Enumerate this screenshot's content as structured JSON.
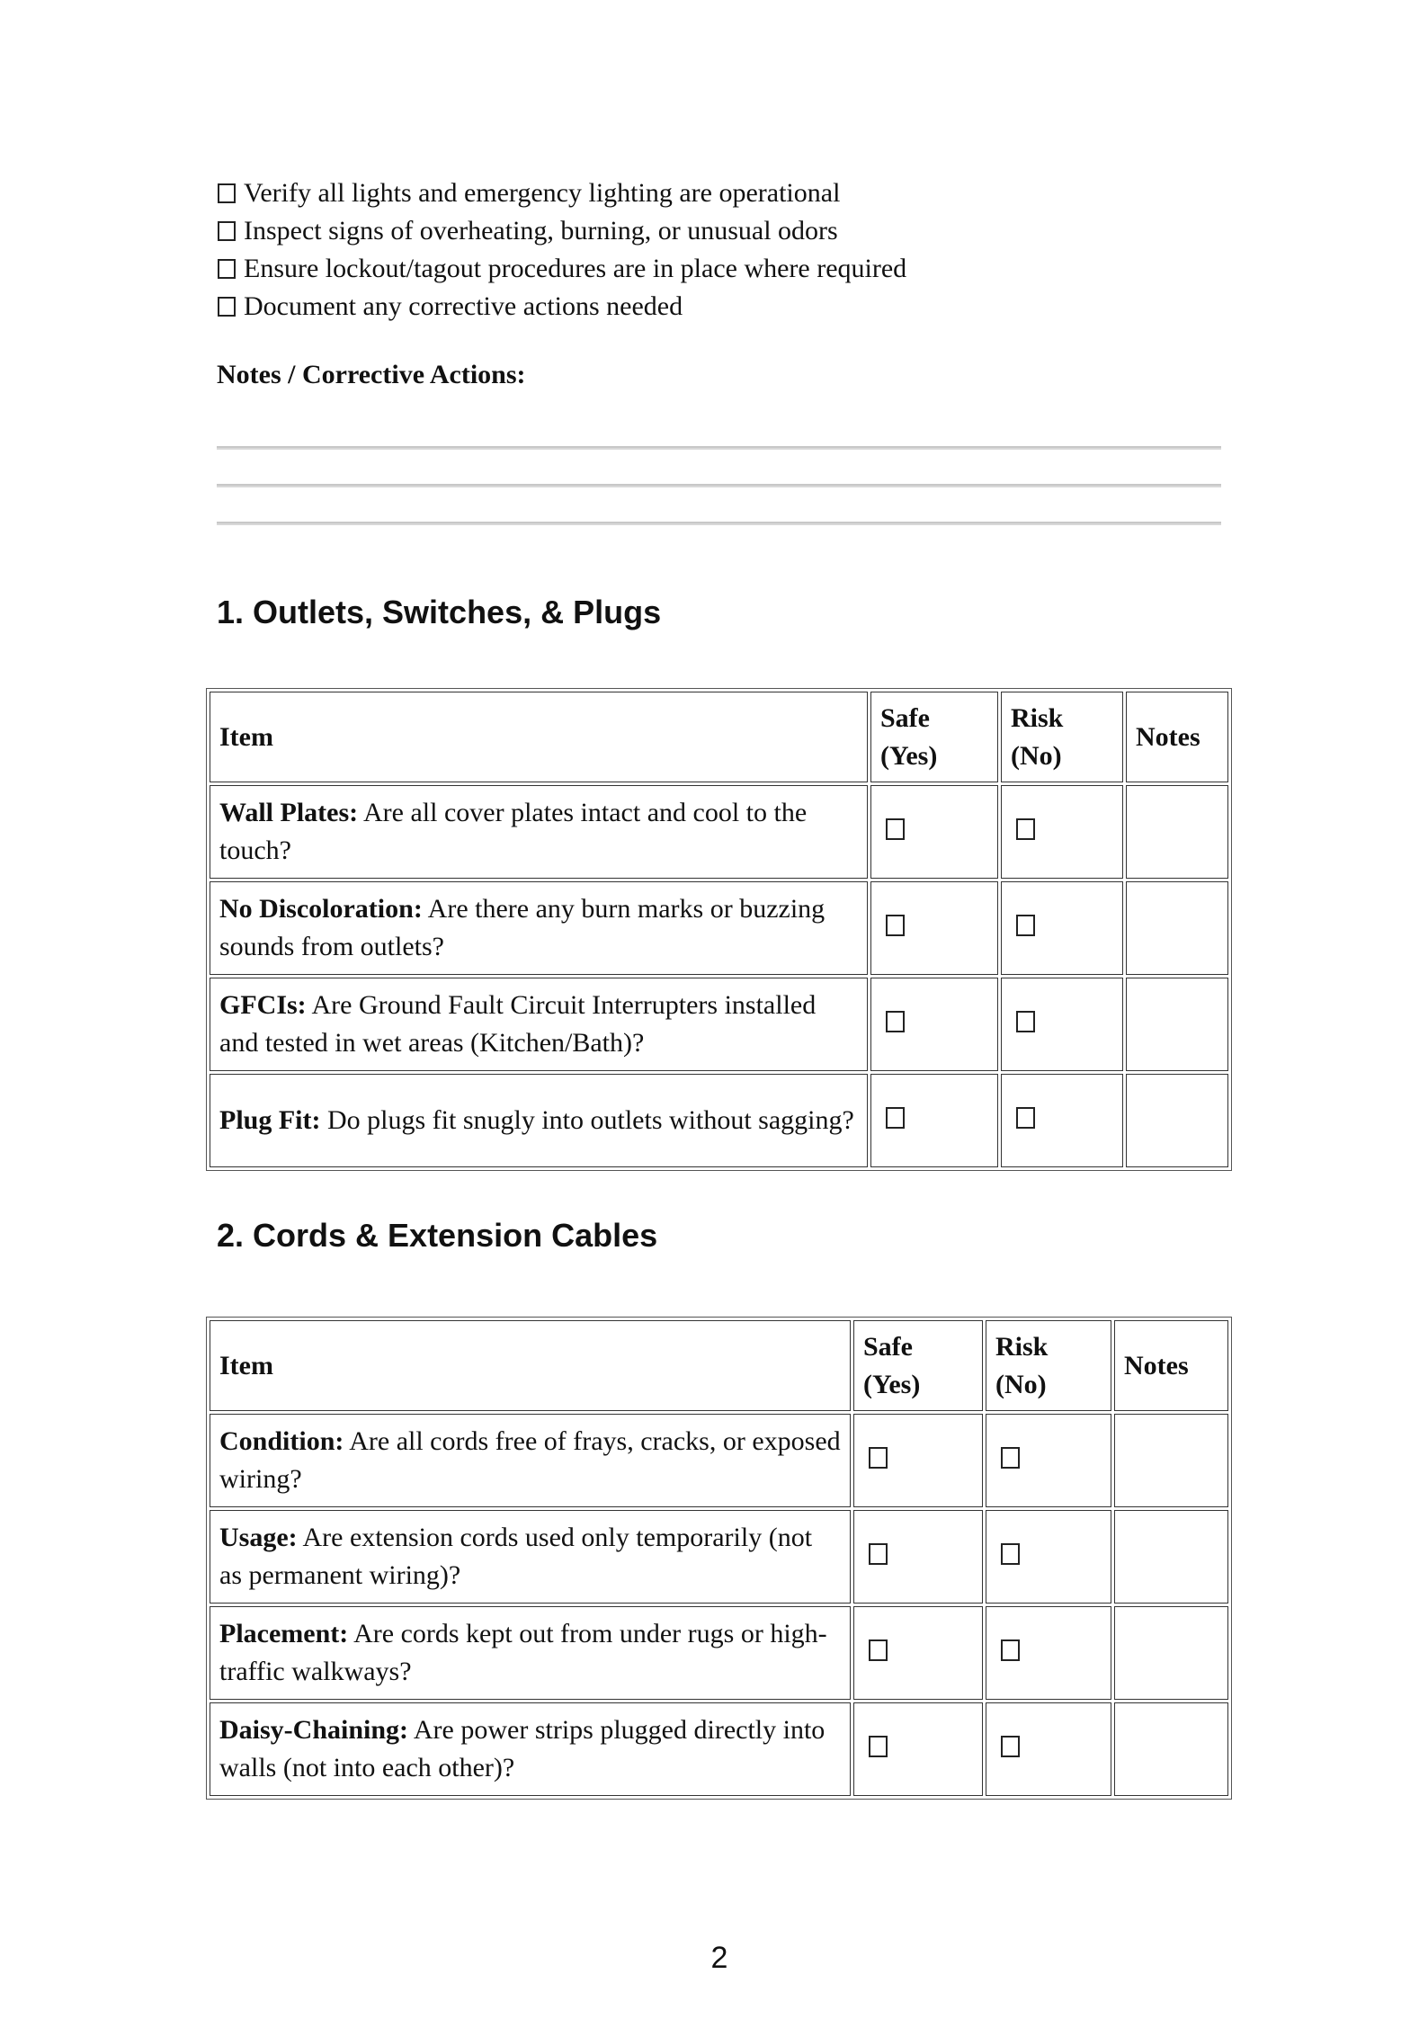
{
  "checklist": [
    "Verify all lights and emergency lighting are operational",
    "Inspect signs of overheating, burning, or unusual odors",
    "Ensure lockout/tagout procedures are in place where required",
    "Document any corrective actions needed"
  ],
  "notes_title": "Notes / Corrective Actions:",
  "sections": [
    {
      "heading": "1.  Outlets, Switches, & Plugs",
      "columns": [
        "Item",
        "Safe (Yes)",
        "Risk (No)",
        "Notes"
      ],
      "rows": [
        {
          "label": "Wall Plates:",
          "text": " Are all cover plates intact and cool to the touch?"
        },
        {
          "label": "No Discoloration:",
          "text": " Are there any burn marks or buzzing sounds from outlets?"
        },
        {
          "label": "GFCIs:",
          "text": " Are Ground Fault Circuit Interrupters installed and tested in wet areas (Kitchen/Bath)?"
        },
        {
          "label": "Plug Fit:",
          "text": " Do plugs fit snugly into outlets without sagging?"
        }
      ]
    },
    {
      "heading": "2.  Cords & Extension Cables",
      "columns": [
        "Item",
        "Safe (Yes)",
        "Risk (No)",
        "Notes"
      ],
      "rows": [
        {
          "label": "Condition:",
          "text": " Are all cords free of frays, cracks, or exposed wiring?"
        },
        {
          "label": "Usage:",
          "text": " Are extension cords used only temporarily (not as permanent wiring)?"
        },
        {
          "label": "Placement:",
          "text": " Are cords kept out from under rugs or high-traffic walkways?"
        },
        {
          "label": "Daisy-Chaining:",
          "text": " Are power strips plugged directly into walls (not into each other)?"
        }
      ]
    }
  ],
  "page_number": "2"
}
